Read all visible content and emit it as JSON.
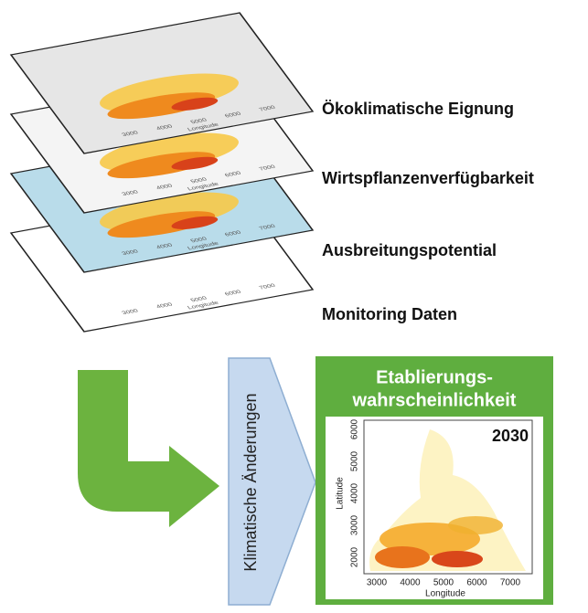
{
  "layers": [
    {
      "label": "Ökoklimatische Eignung"
    },
    {
      "label": "Wirtspflanzenverfügbarkeit"
    },
    {
      "label": "Ausbreitungspotential"
    },
    {
      "label": "Monitoring Daten"
    }
  ],
  "layer_axis": {
    "xticks": [
      "3000",
      "4000",
      "5000",
      "6000",
      "7000"
    ],
    "xlabel": "Longitude"
  },
  "change_arrow": {
    "label": "Klimatische Änderungen"
  },
  "result": {
    "title_lines": [
      "Etablierungs-",
      "wahrscheinlichkeit"
    ],
    "year": "2030",
    "xticks": [
      "3000",
      "4000",
      "5000",
      "6000",
      "7000"
    ],
    "xlabel": "Longitude",
    "yticks": [
      "2000",
      "3000",
      "4000",
      "5000",
      "6000"
    ],
    "ylabel": "Latitude"
  }
}
